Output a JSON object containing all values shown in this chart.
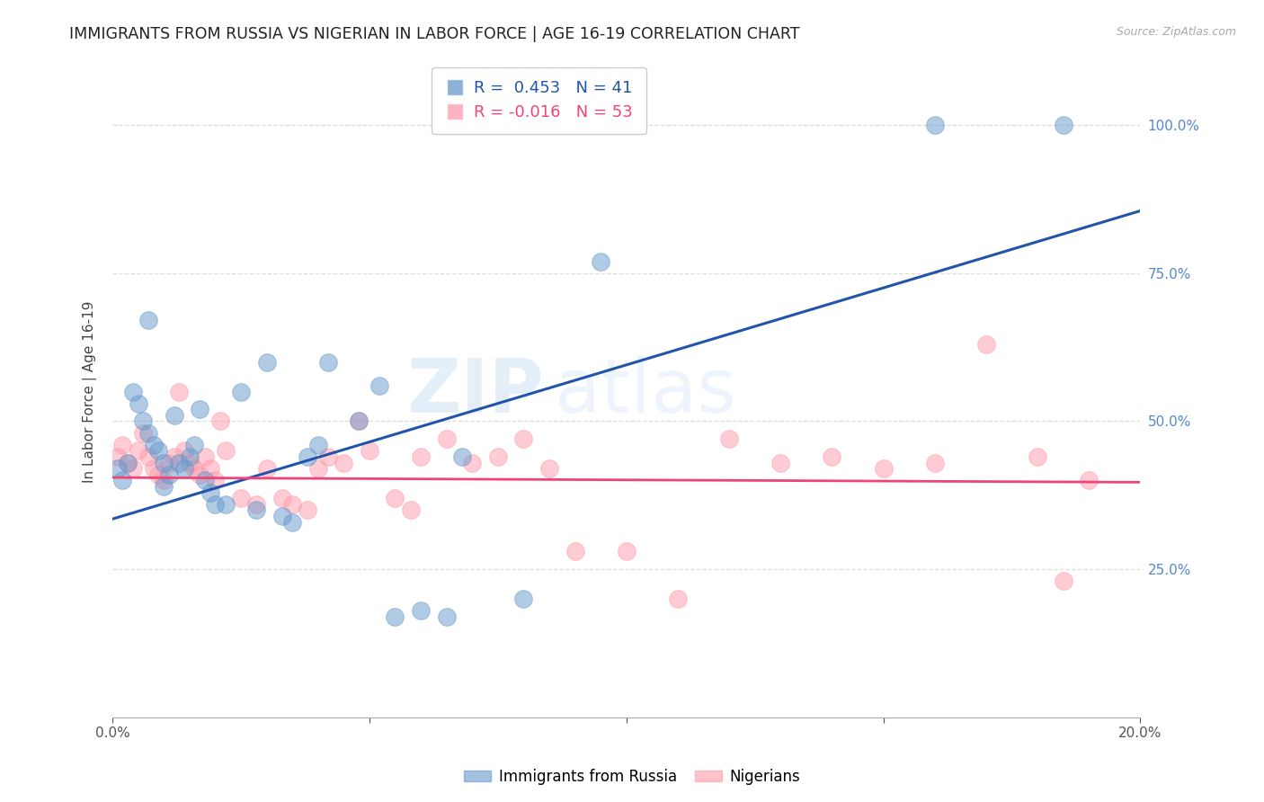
{
  "title": "IMMIGRANTS FROM RUSSIA VS NIGERIAN IN LABOR FORCE | AGE 16-19 CORRELATION CHART",
  "source": "Source: ZipAtlas.com",
  "ylabel": "In Labor Force | Age 16-19",
  "xlim": [
    0.0,
    0.2
  ],
  "ylim": [
    0.0,
    1.1
  ],
  "ytick_positions_right": [
    0.25,
    0.5,
    0.75,
    1.0
  ],
  "russia_color": "#6699cc",
  "nigeria_color": "#ff99aa",
  "russia_line_color": "#2255aa",
  "nigeria_line_color": "#ee4477",
  "russia_r": 0.453,
  "russia_n": 41,
  "nigeria_r": -0.016,
  "nigeria_n": 53,
  "russia_trend_x0": 0.0,
  "russia_trend_y0": 0.335,
  "russia_trend_x1": 0.2,
  "russia_trend_y1": 0.855,
  "nigeria_trend_x0": 0.0,
  "nigeria_trend_y0": 0.405,
  "nigeria_trend_x1": 0.2,
  "nigeria_trend_y1": 0.397,
  "russia_scatter_x": [
    0.001,
    0.002,
    0.003,
    0.004,
    0.005,
    0.006,
    0.007,
    0.008,
    0.009,
    0.01,
    0.01,
    0.011,
    0.012,
    0.013,
    0.014,
    0.015,
    0.016,
    0.017,
    0.018,
    0.019,
    0.02,
    0.022,
    0.025,
    0.028,
    0.033,
    0.035,
    0.038,
    0.042,
    0.048,
    0.052,
    0.055,
    0.06,
    0.065,
    0.068,
    0.03,
    0.095,
    0.16,
    0.185,
    0.007,
    0.08,
    0.04
  ],
  "russia_scatter_y": [
    0.42,
    0.4,
    0.43,
    0.55,
    0.53,
    0.5,
    0.48,
    0.46,
    0.45,
    0.39,
    0.43,
    0.41,
    0.51,
    0.43,
    0.42,
    0.44,
    0.46,
    0.52,
    0.4,
    0.38,
    0.36,
    0.36,
    0.55,
    0.35,
    0.34,
    0.33,
    0.44,
    0.6,
    0.5,
    0.56,
    0.17,
    0.18,
    0.17,
    0.44,
    0.6,
    0.77,
    1.0,
    1.0,
    0.67,
    0.2,
    0.46
  ],
  "nigeria_scatter_x": [
    0.001,
    0.002,
    0.003,
    0.004,
    0.005,
    0.006,
    0.007,
    0.008,
    0.009,
    0.01,
    0.011,
    0.012,
    0.013,
    0.014,
    0.015,
    0.016,
    0.017,
    0.018,
    0.019,
    0.02,
    0.021,
    0.022,
    0.025,
    0.028,
    0.03,
    0.033,
    0.035,
    0.038,
    0.04,
    0.042,
    0.045,
    0.048,
    0.05,
    0.055,
    0.058,
    0.06,
    0.065,
    0.07,
    0.075,
    0.08,
    0.085,
    0.09,
    0.1,
    0.11,
    0.12,
    0.13,
    0.14,
    0.15,
    0.16,
    0.17,
    0.18,
    0.185,
    0.19
  ],
  "nigeria_scatter_y": [
    0.44,
    0.46,
    0.43,
    0.42,
    0.45,
    0.48,
    0.44,
    0.42,
    0.41,
    0.4,
    0.43,
    0.44,
    0.55,
    0.45,
    0.43,
    0.42,
    0.41,
    0.44,
    0.42,
    0.4,
    0.5,
    0.45,
    0.37,
    0.36,
    0.42,
    0.37,
    0.36,
    0.35,
    0.42,
    0.44,
    0.43,
    0.5,
    0.45,
    0.37,
    0.35,
    0.44,
    0.47,
    0.43,
    0.44,
    0.47,
    0.42,
    0.28,
    0.28,
    0.2,
    0.47,
    0.43,
    0.44,
    0.42,
    0.43,
    0.63,
    0.44,
    0.23,
    0.4
  ],
  "watermark_line1": "ZIP",
  "watermark_line2": "atlas",
  "background_color": "#ffffff",
  "grid_color": "#dddddd",
  "legend_label_russia": "Immigrants from Russia",
  "legend_label_nigeria": "Nigerians",
  "title_fontsize": 12.5,
  "axis_label_fontsize": 11,
  "tick_fontsize": 11,
  "legend_fontsize": 12
}
